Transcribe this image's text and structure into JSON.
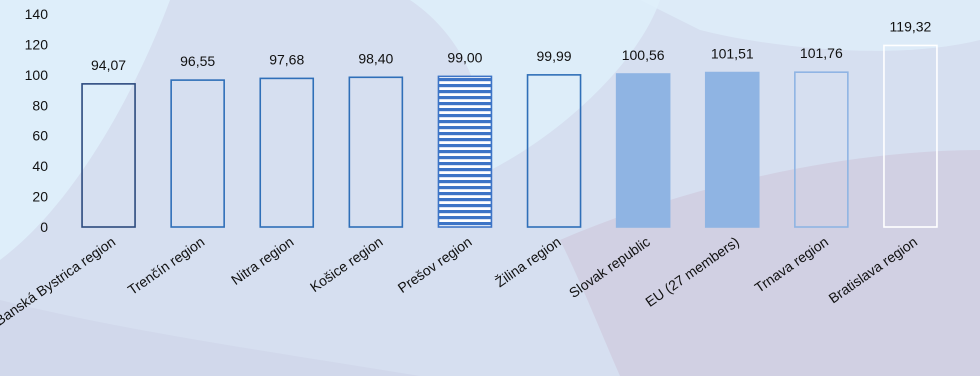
{
  "chart_data": {
    "type": "bar",
    "categories": [
      "Banská Bystrica region",
      "Trenčín region",
      "Nitra region",
      "Košice region",
      "Prešov region",
      "Žilina region",
      "Slovak republic",
      "EU (27 members)",
      "Trnava region",
      "Bratislava region"
    ],
    "values": [
      94.07,
      96.55,
      97.68,
      98.4,
      99.0,
      99.99,
      100.56,
      101.51,
      101.76,
      119.32
    ],
    "data_labels": [
      "94,07",
      "96,55",
      "97,68",
      "98,40",
      "99,00",
      "99,99",
      "100,56",
      "101,51",
      "101,76",
      "119,32"
    ],
    "y_ticks": [
      "0",
      "20",
      "40",
      "60",
      "80",
      "100",
      "120",
      "140"
    ],
    "ylim": [
      0,
      140
    ],
    "grid": false,
    "legend": "none",
    "title": "",
    "xlabel": "",
    "ylabel": "",
    "bar_styles": [
      {
        "fill": "none",
        "stroke": "#2c4a7e",
        "pattern": "none"
      },
      {
        "fill": "none",
        "stroke": "#2f6fb8",
        "pattern": "none"
      },
      {
        "fill": "none",
        "stroke": "#2f6fb8",
        "pattern": "none"
      },
      {
        "fill": "none",
        "stroke": "#2f6fb8",
        "pattern": "none"
      },
      {
        "fill": "#3d74c6",
        "stroke": "#3d74c6",
        "pattern": "horizontal-stripes"
      },
      {
        "fill": "none",
        "stroke": "#2f6fb8",
        "pattern": "none"
      },
      {
        "fill": "#8fb4e3",
        "stroke": "#8fb4e3",
        "pattern": "none"
      },
      {
        "fill": "#8fb4e3",
        "stroke": "#8fb4e3",
        "pattern": "none"
      },
      {
        "fill": "none",
        "stroke": "#8fb4e3",
        "pattern": "none"
      },
      {
        "fill": "none",
        "stroke": "#ffffff",
        "pattern": "none"
      }
    ]
  },
  "colors": {
    "background": "#d6dff0",
    "swirl_light": "#dff0fb",
    "swirl_mauve": "#cdc6da"
  }
}
